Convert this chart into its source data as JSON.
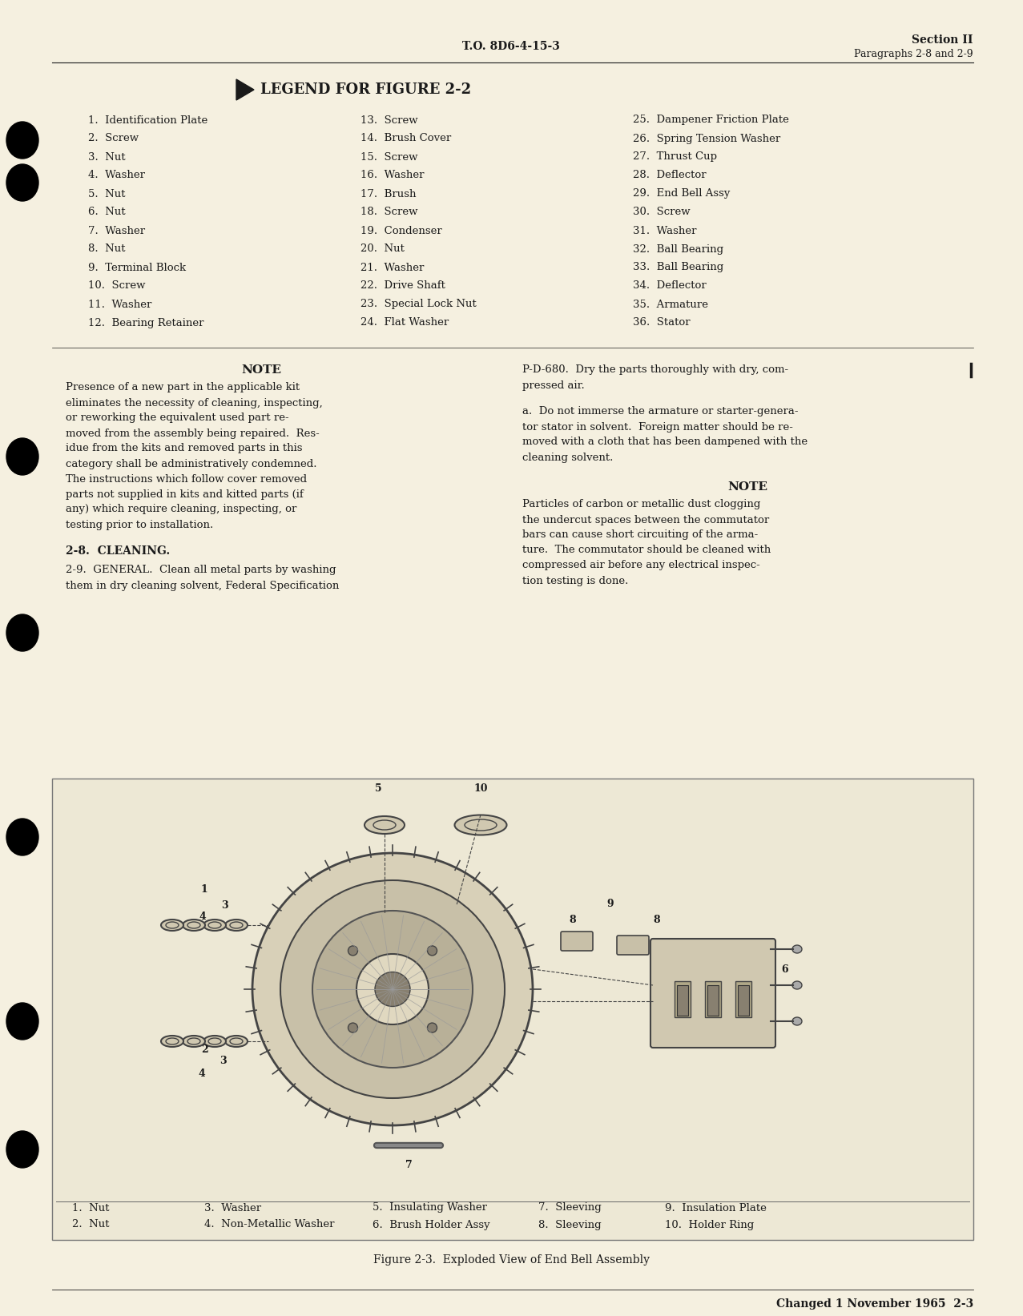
{
  "bg_color": "#f5f0e0",
  "page_color": "#faf6e8",
  "header_center": "T.O. 8D6-4-15-3",
  "header_right_line1": "Section II",
  "header_right_line2": "Paragraphs 2-8 and 2-9",
  "legend_title": "LEGEND FOR FIGURE 2-2",
  "legend_col1": [
    "1.  Identification Plate",
    "2.  Screw",
    "3.  Nut",
    "4.  Washer",
    "5.  Nut",
    "6.  Nut",
    "7.  Washer",
    "8.  Nut",
    "9.  Terminal Block",
    "10.  Screw",
    "11.  Washer",
    "12.  Bearing Retainer"
  ],
  "legend_col2": [
    "13.  Screw",
    "14.  Brush Cover",
    "15.  Screw",
    "16.  Washer",
    "17.  Brush",
    "18.  Screw",
    "19.  Condenser",
    "20.  Nut",
    "21.  Washer",
    "22.  Drive Shaft",
    "23.  Special Lock Nut",
    "24.  Flat Washer"
  ],
  "legend_col3": [
    "25.  Dampener Friction Plate",
    "26.  Spring Tension Washer",
    "27.  Thrust Cup",
    "28.  Deflector",
    "29.  End Bell Assy",
    "30.  Screw",
    "31.  Washer",
    "32.  Ball Bearing",
    "33.  Ball Bearing",
    "34.  Deflector",
    "35.  Armature",
    "36.  Stator"
  ],
  "note1_title": "NOTE",
  "note1_lines": [
    "Presence of a new part in the applicable kit",
    "eliminates the necessity of cleaning, inspecting,",
    "or reworking the equivalent used part re-",
    "moved from the assembly being repaired.  Res-",
    "idue from the kits and removed parts in this",
    "category shall be administratively condemned.",
    "The instructions which follow cover removed",
    "parts not supplied in kits and kitted parts (if",
    "any) which require cleaning, inspecting, or",
    "testing prior to installation."
  ],
  "section_28": "2-8.  CLEANING.",
  "section_29_lines": [
    "2-9.  GENERAL.  Clean all metal parts by washing",
    "them in dry cleaning solvent, Federal Specification"
  ],
  "right_col1_lines": [
    "P-D-680.  Dry the parts thoroughly with dry, com-",
    "pressed air."
  ],
  "right_col_a_lines": [
    "a.  Do not immerse the armature or starter-genera-",
    "tor stator in solvent.  Foreign matter should be re-",
    "moved with a cloth that has been dampened with the",
    "cleaning solvent."
  ],
  "note2_title": "NOTE",
  "note2_lines": [
    "Particles of carbon or metallic dust clogging",
    "the undercut spaces between the commutator",
    "bars can cause short circuiting of the arma-",
    "ture.  The commutator should be cleaned with",
    "compressed air before any electrical inspec-",
    "tion testing is done."
  ],
  "figure_caption": "Figure 2-3.  Exploded View of End Bell Assembly",
  "figure_legend_col1": [
    "1.  Nut",
    "2.  Nut"
  ],
  "figure_legend_col2": [
    "3.  Washer",
    "4.  Non-Metallic Washer"
  ],
  "figure_legend_col3": [
    "5.  Insulating Washer",
    "6.  Brush Holder Assy"
  ],
  "figure_legend_col4": [
    "7.  Sleeving",
    "8.  Sleeving"
  ],
  "figure_legend_col5": [
    "9.  Insulation Plate",
    "10.  Holder Ring"
  ],
  "footer_text": "Changed 1 November 1965  2-3",
  "text_color": "#1a1a1a",
  "font_family": "serif"
}
